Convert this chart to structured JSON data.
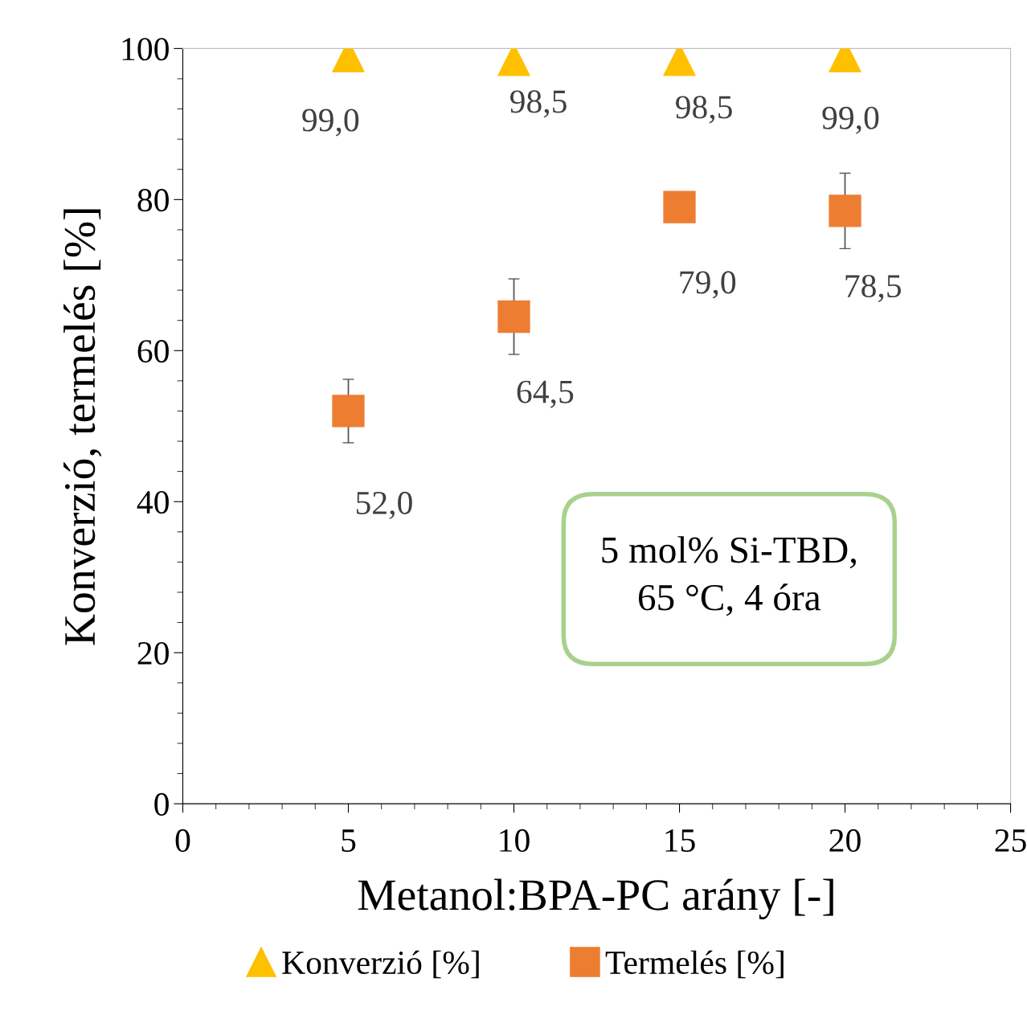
{
  "chart_data": {
    "type": "scatter",
    "xlabel": "Metanol:BPA-PC arány [-]",
    "ylabel": "Konverzió, termelés [%]",
    "x": [
      5,
      10,
      15,
      20
    ],
    "xlim": [
      0,
      25
    ],
    "xticks": [
      0,
      5,
      10,
      15,
      20,
      25
    ],
    "ylim": [
      0,
      100
    ],
    "yticks": [
      0,
      20,
      40,
      60,
      80,
      100
    ],
    "grid": false,
    "legend": "bottom",
    "series": [
      {
        "name": "Konverzió [%]",
        "color": "#ffc000",
        "marker": "triangle",
        "values": [
          99.0,
          98.5,
          98.5,
          99.0
        ],
        "value_labels": [
          "99,0",
          "98,5",
          "98,5",
          "99,0"
        ]
      },
      {
        "name": "Termelés [%]",
        "color": "#ed7d31",
        "marker": "square",
        "values": [
          52.0,
          64.5,
          79.0,
          78.5
        ],
        "errors": [
          4.2,
          5,
          null,
          5
        ],
        "value_labels": [
          "52,0",
          "64,5",
          "79,0",
          "78,5"
        ]
      }
    ],
    "annotations": [
      "5 mol% Si-TBD,\n65 °C, 4 óra"
    ]
  }
}
